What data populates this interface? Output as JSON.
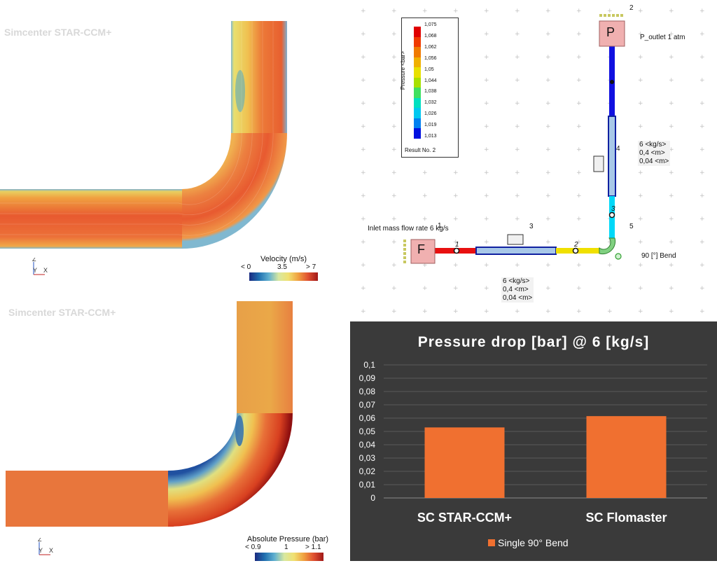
{
  "cfd_velocity": {
    "watermark": "Simcenter STAR-CCM+",
    "triad": {
      "z": "Z",
      "y": "Y",
      "x": "X"
    },
    "colorbar": {
      "title": "Velocity (m/s)",
      "ticks": [
        "< 0",
        "3.5",
        "> 7"
      ]
    }
  },
  "cfd_pressure": {
    "watermark": "Simcenter STAR-CCM+",
    "triad": {
      "z": "Z",
      "y": "Y",
      "x": "X"
    },
    "colorbar": {
      "title": "Absolute Pressure (bar)",
      "ticks": [
        "< 0.9",
        "1",
        "> 1.1"
      ]
    }
  },
  "network": {
    "legend": {
      "title": "Pressure <bar>",
      "values": [
        "1,075",
        "1,068",
        "1,062",
        "1,056",
        "1,05",
        "1,044",
        "1,038",
        "1,032",
        "1,026",
        "1,019",
        "1,013"
      ],
      "colors": [
        "#e00000",
        "#f03a00",
        "#f07a00",
        "#f0b000",
        "#e8e000",
        "#a8e000",
        "#40e060",
        "#00e0c0",
        "#00c8f0",
        "#0080f0",
        "#0010e0"
      ],
      "result": "Result No. 2"
    },
    "inlet_label": "Inlet mass flow rate 6 kg/s",
    "outlet_label": "P_outlet 1 atm",
    "bend_label": "90 [°] Bend",
    "source_letter": "F",
    "sink_letter": "P",
    "component_numbers": {
      "n1": "1",
      "n2": "2",
      "n3": "3",
      "n4": "4",
      "n5": "5"
    },
    "node_numbers": {
      "a": "1",
      "b": "2",
      "c": "3"
    },
    "pipe3_params": [
      "6 <kg/s>",
      "0,4 <m>",
      "0,04 <m>"
    ],
    "pipe4_params": [
      "6 <kg/s>",
      "0,4 <m>",
      "0,04 <m>"
    ]
  },
  "chart_data": {
    "type": "bar",
    "title": "Pressure drop [bar] @ 6 [kg/s]",
    "categories": [
      "SC STAR-CCM+",
      "SC Flomaster"
    ],
    "series": [
      {
        "name": "Single 90° Bend",
        "values": [
          0.053,
          0.0615
        ]
      }
    ],
    "ylim": [
      0,
      0.1
    ],
    "yticks": [
      "0",
      "0,01",
      "0,02",
      "0,03",
      "0,04",
      "0,05",
      "0,06",
      "0,07",
      "0,08",
      "0,09",
      "0,1"
    ],
    "grid": true,
    "legend_position": "bottom",
    "colors": {
      "bar": "#f07030",
      "background": "#3a3a3a",
      "text": "#ffffff",
      "grid": "#5a5a5a"
    }
  }
}
